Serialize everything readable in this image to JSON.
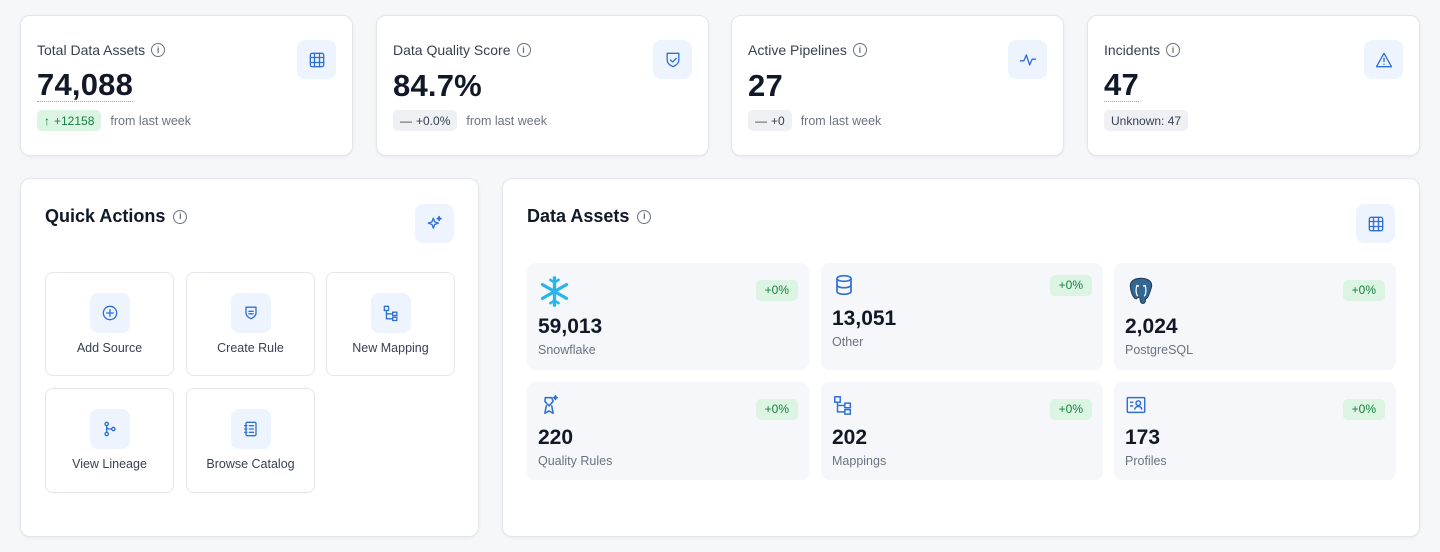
{
  "stats": [
    {
      "label": "Total Data Assets",
      "value": "74,088",
      "delta": "+12158",
      "delta_arrow": "↑",
      "suffix": "from last week",
      "icon": "database-cylinders-icon"
    },
    {
      "label": "Data Quality Score",
      "value": "84.7%",
      "delta": "+0.0%",
      "delta_arrow": "—",
      "suffix": "from last week",
      "icon": "shield-check-icon"
    },
    {
      "label": "Active Pipelines",
      "value": "27",
      "delta": "+0",
      "delta_arrow": "—",
      "suffix": "from last week",
      "icon": "activity-pulse-icon"
    },
    {
      "label": "Incidents",
      "value": "47",
      "badge": "Unknown: 47",
      "icon": "warning-triangle-icon"
    }
  ],
  "quick_actions": {
    "title": "Quick Actions",
    "icon": "sparkles-icon",
    "items": [
      {
        "label": "Add Source",
        "icon": "plus-circle-icon"
      },
      {
        "label": "Create Rule",
        "icon": "shield-rule-icon"
      },
      {
        "label": "New Mapping",
        "icon": "mapping-tree-icon"
      },
      {
        "label": "View Lineage",
        "icon": "git-branch-icon"
      },
      {
        "label": "Browse Catalog",
        "icon": "notebook-icon"
      }
    ]
  },
  "data_assets": {
    "title": "Data Assets",
    "icon": "database-cylinders-icon",
    "tiles": [
      {
        "value": "59,013",
        "label": "Snowflake",
        "change": "+0%",
        "icon": "snowflake-icon"
      },
      {
        "value": "13,051",
        "label": "Other",
        "change": "+0%",
        "icon": "database-icon"
      },
      {
        "value": "2,024",
        "label": "PostgreSQL",
        "change": "+0%",
        "icon": "postgresql-elephant-icon"
      },
      {
        "value": "220",
        "label": "Quality Rules",
        "change": "+0%",
        "icon": "award-badge-icon"
      },
      {
        "value": "202",
        "label": "Mappings",
        "change": "+0%",
        "icon": "mapping-tree-icon"
      },
      {
        "value": "173",
        "label": "Profiles",
        "change": "+0%",
        "icon": "profile-card-icon"
      }
    ]
  },
  "colors": {
    "accent": "#2f6fd6",
    "positive_bg": "#dcf5e3",
    "positive_text": "#15803d"
  }
}
